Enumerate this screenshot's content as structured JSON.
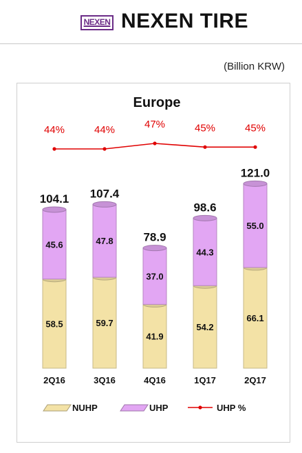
{
  "header": {
    "logo_text": "NEXEN",
    "brand": "NEXEN TIRE"
  },
  "unit_label": "(Billion KRW)",
  "chart_data": {
    "type": "bar",
    "title": "Europe",
    "categories": [
      "2Q16",
      "3Q16",
      "4Q16",
      "1Q17",
      "2Q17"
    ],
    "series": [
      {
        "name": "NUHP",
        "values": [
          58.5,
          59.7,
          41.9,
          54.2,
          66.1
        ],
        "color": "#f3e2a6"
      },
      {
        "name": "UHP",
        "values": [
          45.6,
          47.8,
          37.0,
          44.3,
          55.0
        ],
        "color": "#e2a6f3"
      }
    ],
    "totals": [
      104.1,
      107.4,
      78.9,
      98.6,
      121.0
    ],
    "line_series": {
      "name": "UHP %",
      "values": [
        44,
        44,
        47,
        45,
        45
      ],
      "labels": [
        "44%",
        "44%",
        "47%",
        "45%",
        "45%"
      ],
      "color": "#e00000"
    },
    "stacked": true,
    "legend_position": "bottom",
    "grid": false
  }
}
